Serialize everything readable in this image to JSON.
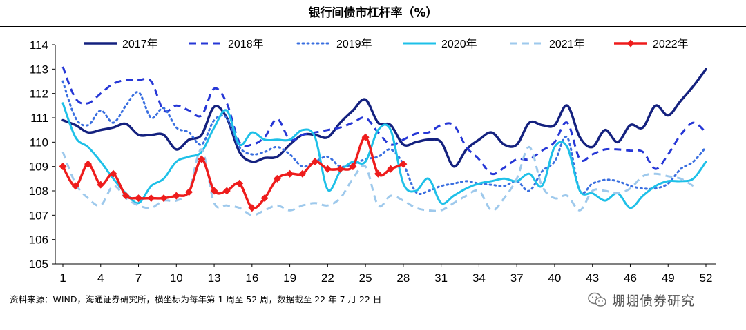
{
  "title": "银行间债市杠杆率（%）",
  "footnote": "资料来源：WIND，海通证券研究所，横坐标为每年第 1 周至 52 周，数据截至 22 年 7 月 22 日",
  "watermark": "堋堋债券研究",
  "chart_data": {
    "type": "line",
    "ylim": [
      105,
      114
    ],
    "y_ticks": [
      "105",
      "106",
      "107",
      "108",
      "109",
      "110",
      "111",
      "112",
      "113",
      "114"
    ],
    "x_ticks": [
      "1",
      "4",
      "7",
      "10",
      "13",
      "16",
      "19",
      "22",
      "25",
      "28",
      "31",
      "34",
      "37",
      "40",
      "43",
      "46",
      "49",
      "52"
    ],
    "x_tick_values": [
      1,
      4,
      7,
      10,
      13,
      16,
      19,
      22,
      25,
      28,
      31,
      34,
      37,
      40,
      43,
      46,
      49,
      52
    ],
    "xlim": [
      1,
      52
    ],
    "grid": false,
    "legend_position": "top",
    "series": [
      {
        "name": "2017年",
        "color": "#14217f",
        "dash": "solid",
        "width": 3.5,
        "marker": "none",
        "values": [
          110.9,
          110.7,
          110.4,
          110.5,
          110.6,
          110.75,
          110.3,
          110.3,
          110.3,
          109.7,
          110.1,
          110.3,
          111.45,
          111.0,
          109.6,
          109.2,
          109.35,
          109.4,
          109.9,
          110.3,
          110.3,
          110.2,
          110.8,
          111.3,
          111.75,
          110.8,
          110.7,
          109.9,
          110.0,
          110.1,
          110.0,
          109.0,
          109.7,
          110.1,
          110.4,
          109.9,
          109.9,
          110.8,
          110.7,
          110.7,
          111.5,
          110.2,
          109.8,
          110.5,
          110.0,
          110.7,
          110.6,
          111.5,
          111.1,
          111.7,
          112.3,
          113.0
        ]
      },
      {
        "name": "2018年",
        "color": "#2637d6",
        "dash": "10,7",
        "width": 3,
        "marker": "none",
        "values": [
          113.1,
          111.8,
          111.6,
          112.0,
          112.4,
          112.55,
          112.55,
          112.5,
          111.3,
          111.5,
          111.3,
          111.1,
          112.2,
          111.6,
          110.0,
          109.9,
          110.2,
          110.95,
          110.1,
          110.3,
          110.4,
          110.5,
          110.6,
          110.8,
          111.0,
          110.4,
          109.9,
          110.1,
          110.35,
          110.4,
          110.7,
          110.7,
          109.8,
          109.3,
          108.7,
          108.95,
          109.3,
          109.3,
          109.65,
          110.0,
          110.8,
          109.3,
          109.5,
          109.7,
          109.7,
          109.65,
          109.6,
          108.9,
          109.5,
          110.3,
          110.8,
          110.4
        ]
      },
      {
        "name": "2019年",
        "color": "#3a6fe0",
        "dash": "2,5",
        "width": 3,
        "marker": "none",
        "values": [
          112.5,
          111.0,
          110.7,
          111.3,
          110.8,
          111.5,
          112.05,
          111.0,
          111.4,
          110.6,
          110.4,
          109.9,
          110.9,
          111.0,
          109.8,
          109.5,
          109.6,
          109.8,
          109.5,
          109.0,
          109.2,
          109.4,
          109.0,
          109.1,
          109.3,
          109.4,
          109.7,
          109.1,
          107.95,
          108.0,
          108.2,
          108.3,
          108.4,
          108.3,
          108.25,
          108.2,
          108.4,
          108.0,
          108.8,
          109.2,
          110.2,
          108.0,
          108.3,
          108.45,
          108.4,
          108.2,
          108.1,
          108.1,
          108.3,
          108.9,
          109.2,
          109.8
        ]
      },
      {
        "name": "2020年",
        "color": "#1ec0e8",
        "dash": "solid",
        "width": 3,
        "marker": "none",
        "values": [
          111.6,
          110.2,
          109.8,
          109.2,
          108.5,
          107.9,
          107.5,
          108.2,
          108.5,
          109.2,
          109.4,
          109.6,
          110.6,
          111.3,
          109.9,
          110.4,
          110.1,
          110.1,
          110.1,
          110.5,
          110.2,
          108.05,
          108.8,
          109.2,
          109.2,
          110.5,
          110.5,
          108.3,
          108.0,
          108.5,
          107.5,
          107.8,
          108.1,
          108.3,
          108.4,
          108.5,
          108.4,
          108.7,
          108.2,
          109.8,
          109.8,
          108.0,
          107.9,
          107.6,
          107.9,
          107.3,
          107.8,
          108.2,
          108.4,
          108.4,
          108.5,
          109.2
        ]
      },
      {
        "name": "2021年",
        "color": "#9ec9ec",
        "dash": "10,7",
        "width": 3,
        "marker": "none",
        "values": [
          109.6,
          108.3,
          107.7,
          107.4,
          108.2,
          107.7,
          107.4,
          107.3,
          107.6,
          107.6,
          108.0,
          109.7,
          107.5,
          107.4,
          107.3,
          107.0,
          107.2,
          107.4,
          107.2,
          107.4,
          107.5,
          107.4,
          107.7,
          108.5,
          109.0,
          107.4,
          107.8,
          107.6,
          107.3,
          107.2,
          107.2,
          107.5,
          107.8,
          108.0,
          107.2,
          107.7,
          108.5,
          109.8,
          108.2,
          107.7,
          107.8,
          107.2,
          108.0,
          108.0,
          107.9,
          108.1,
          108.6,
          108.7,
          108.6,
          108.5,
          108.2,
          null
        ]
      },
      {
        "name": "2022年",
        "color": "#ee1c1c",
        "dash": "solid",
        "width": 3.5,
        "marker": "diamond",
        "values": [
          109.0,
          108.2,
          109.1,
          108.25,
          108.7,
          107.8,
          107.7,
          107.7,
          107.7,
          107.8,
          107.95,
          109.3,
          108.0,
          108.0,
          108.3,
          107.3,
          107.7,
          108.5,
          108.7,
          108.7,
          109.2,
          108.9,
          108.9,
          109.0,
          110.2,
          108.7,
          108.9,
          109.1
        ]
      }
    ]
  }
}
